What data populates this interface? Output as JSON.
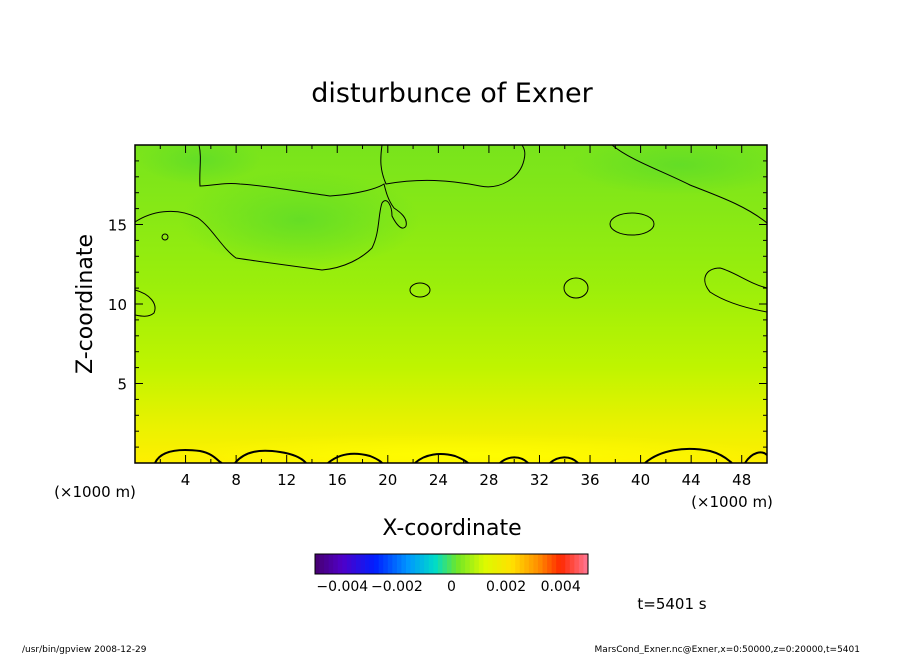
{
  "chart_data": {
    "type": "heatmap",
    "title": "disturbunce of Exner",
    "xlabel": "X-coordinate",
    "ylabel": "Z-coordinate",
    "x_unit": "(×1000 m)",
    "z_unit": "(×1000 m)",
    "xlim": [
      0,
      50
    ],
    "ylim": [
      0,
      20
    ],
    "xticks": [
      4,
      8,
      12,
      16,
      20,
      24,
      28,
      32,
      36,
      40,
      44,
      48
    ],
    "yticks": [
      5,
      10,
      15
    ],
    "colorbar": {
      "range": [
        -0.005,
        0.005
      ],
      "tick_values": [
        -0.004,
        -0.002,
        0,
        0.002,
        0.004
      ],
      "tick_labels": [
        "−0.004",
        "−0.002",
        "0",
        "0.002",
        "0.004"
      ]
    },
    "field_description": "near-zero positive disturbance everywhere; ~0.001 (yellow) near the surface, ~0.0005 (yellow-green) in mid levels, ~0.0002 (green) aloft",
    "contour_value": 0.001,
    "time_label": "t=5401 s",
    "colors": {
      "near_surface": "#ffef00",
      "mid": "#a8f000",
      "upper": "#80e41c",
      "contour": "#000000"
    }
  },
  "footer": {
    "left": "/usr/bin/gpview   2008-12-29",
    "right": "MarsCond_Exner.nc@Exner,x=0:50000,z=0:20000,t=5401"
  }
}
